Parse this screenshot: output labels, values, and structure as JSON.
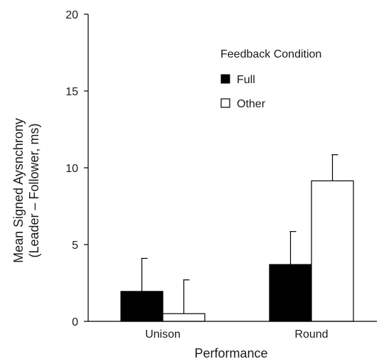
{
  "chart_data": {
    "type": "bar",
    "xlabel": "Performance",
    "ylabel_line1": "Mean Signed Aysnchrony",
    "ylabel_line2": "(Leader – Follower, ms)",
    "ylim": [
      0,
      20
    ],
    "yticks": [
      "0",
      "5",
      "10",
      "15",
      "20"
    ],
    "categories": [
      "Unison",
      "Round"
    ],
    "series": [
      {
        "name": "Full",
        "values": [
          1.95,
          3.7
        ],
        "errors": [
          2.15,
          2.15
        ],
        "color": "#000000"
      },
      {
        "name": "Other",
        "values": [
          0.5,
          9.15
        ],
        "errors": [
          2.2,
          1.7
        ],
        "color": "#ffffff"
      }
    ],
    "legend": {
      "title": "Feedback Condition",
      "position": "top-right"
    },
    "grid": false
  }
}
